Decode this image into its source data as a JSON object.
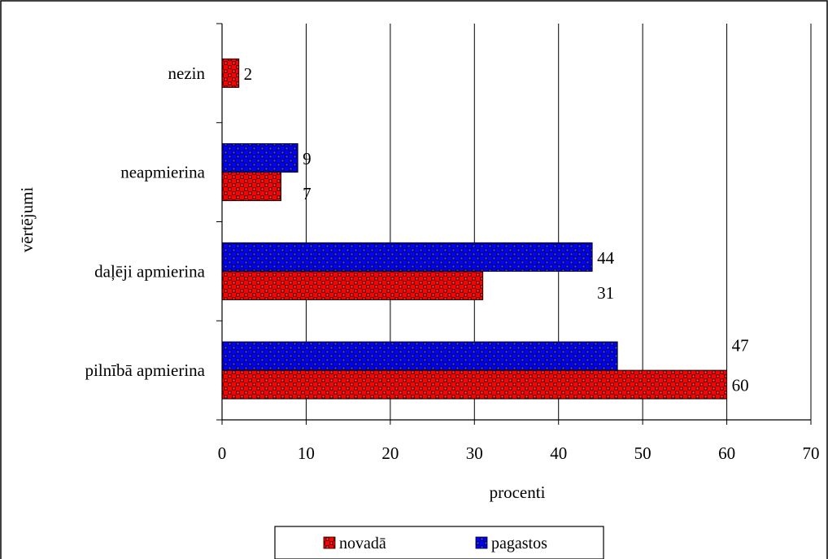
{
  "chart_data": {
    "type": "bar",
    "orientation": "horizontal",
    "title": "",
    "xlabel": "procenti",
    "ylabel": "vērtējumi",
    "xlim": [
      0,
      70
    ],
    "xticks": [
      0,
      10,
      20,
      30,
      40,
      50,
      60,
      70
    ],
    "xtick_labels": [
      "0",
      "10",
      "20",
      "30",
      "40",
      "50",
      "60",
      "70"
    ],
    "grid": "vertical",
    "legend_position": "bottom",
    "categories": [
      "nezin",
      "neapmierina",
      "daļēji apmierina",
      "pilnībā apmierina"
    ],
    "series": [
      {
        "name": "pagastos",
        "color": "#0000ff",
        "pattern_color": "#000080",
        "values": [
          null,
          9,
          44,
          47
        ],
        "labels": [
          "",
          "9",
          "44",
          "47"
        ]
      },
      {
        "name": "novadā",
        "color": "#ff0000",
        "pattern_color": "#800000",
        "values": [
          2,
          7,
          31,
          60
        ],
        "labels": [
          "2",
          "7",
          "31",
          "60"
        ]
      }
    ],
    "legend": [
      "novadā",
      "pagastos"
    ]
  }
}
